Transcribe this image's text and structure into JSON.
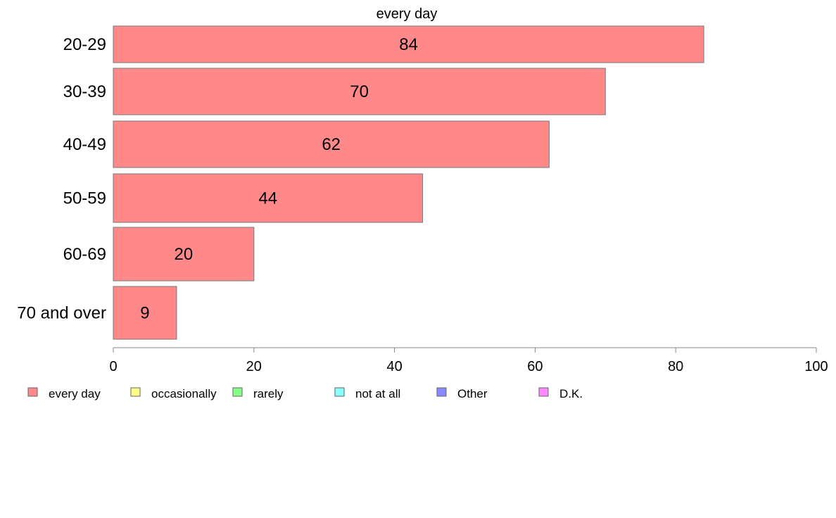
{
  "chart_data": {
    "type": "bar",
    "orientation": "horizontal",
    "title": "every day",
    "xlabel": "",
    "ylabel": "",
    "categories": [
      "20-29",
      "30-39",
      "40-49",
      "50-59",
      "60-69",
      "70 and over"
    ],
    "series": [
      {
        "name": "every day",
        "values": [
          84,
          70,
          62,
          44,
          20,
          9
        ]
      }
    ],
    "xlim": [
      0,
      100
    ],
    "xticks": [
      0,
      20,
      40,
      60,
      80,
      100
    ],
    "grid": false,
    "legend_position": "bottom",
    "legend": [
      {
        "label": "every day",
        "color": "#ff8888"
      },
      {
        "label": "occasionally",
        "color": "#ffff88"
      },
      {
        "label": "rarely",
        "color": "#88ff88"
      },
      {
        "label": "not at all",
        "color": "#88ffff"
      },
      {
        "label": "Other",
        "color": "#8888ff"
      },
      {
        "label": "D.K.",
        "color": "#ff88ff"
      }
    ],
    "bar_color": "#ff8888",
    "bar_border_color": "#777777"
  }
}
